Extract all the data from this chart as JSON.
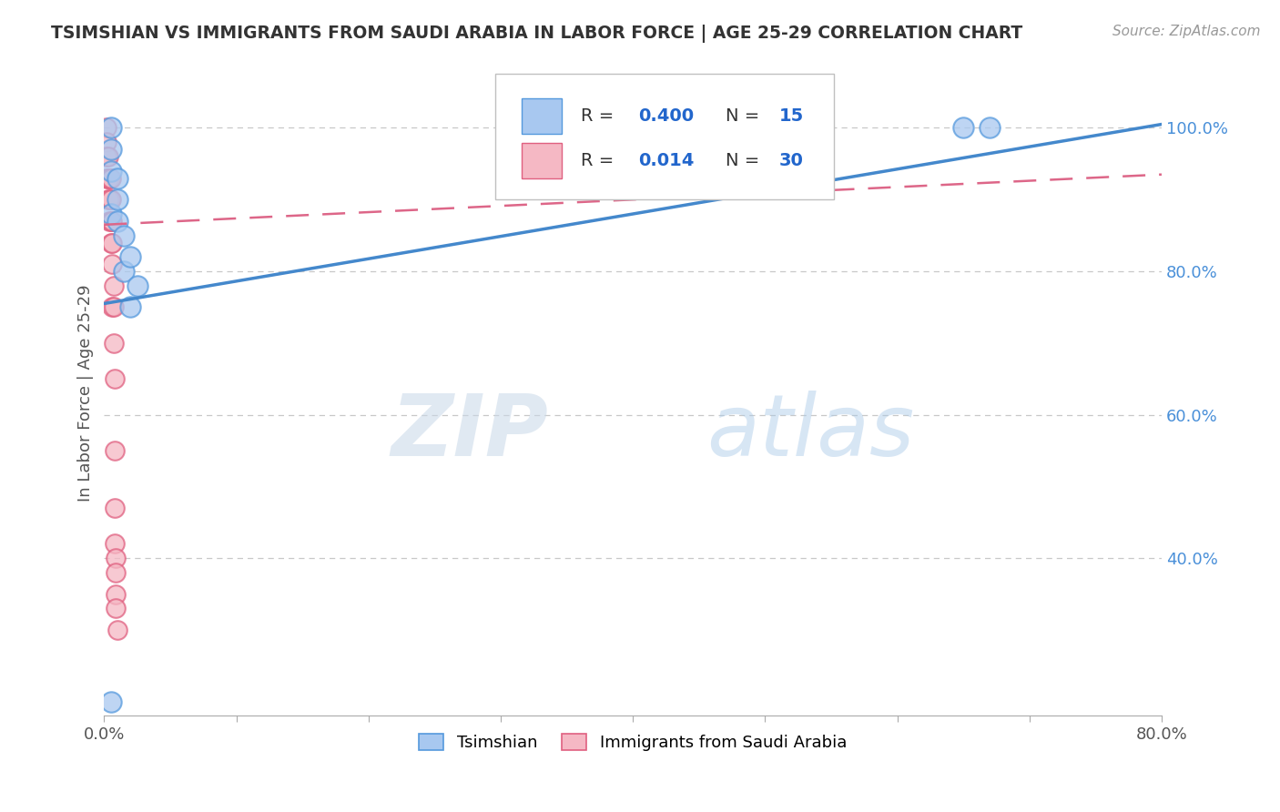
{
  "title": "TSIMSHIAN VS IMMIGRANTS FROM SAUDI ARABIA IN LABOR FORCE | AGE 25-29 CORRELATION CHART",
  "source": "Source: ZipAtlas.com",
  "ylabel": "In Labor Force | Age 25-29",
  "xlim": [
    0.0,
    0.8
  ],
  "ylim": [
    0.18,
    1.08
  ],
  "ytick_labels_right": [
    "40.0%",
    "60.0%",
    "80.0%",
    "100.0%"
  ],
  "ytick_vals_right": [
    0.4,
    0.6,
    0.8,
    1.0
  ],
  "blue_scatter_color": "#A8C8F0",
  "blue_edge_color": "#5599DD",
  "pink_scatter_color": "#F5B8C4",
  "pink_edge_color": "#E06080",
  "blue_line_color": "#4488CC",
  "pink_line_color": "#DD6688",
  "legend_r_blue": "R = 0.400",
  "legend_n_blue": "N = 15",
  "legend_r_pink": "R =  0.014",
  "legend_n_pink": "N = 30",
  "tsimshian_x": [
    0.005,
    0.005,
    0.005,
    0.005,
    0.01,
    0.01,
    0.01,
    0.015,
    0.015,
    0.02,
    0.02,
    0.025,
    0.65,
    0.67,
    0.005
  ],
  "tsimshian_y": [
    1.0,
    0.97,
    0.94,
    0.88,
    0.93,
    0.9,
    0.87,
    0.85,
    0.8,
    0.82,
    0.75,
    0.78,
    1.0,
    1.0,
    0.2
  ],
  "saudi_x": [
    0.002,
    0.002,
    0.002,
    0.002,
    0.003,
    0.003,
    0.003,
    0.004,
    0.004,
    0.004,
    0.005,
    0.005,
    0.005,
    0.005,
    0.006,
    0.006,
    0.006,
    0.006,
    0.007,
    0.007,
    0.007,
    0.008,
    0.008,
    0.008,
    0.008,
    0.009,
    0.009,
    0.009,
    0.009,
    0.01
  ],
  "saudi_y": [
    1.0,
    0.98,
    0.96,
    0.93,
    0.96,
    0.93,
    0.9,
    0.93,
    0.9,
    0.87,
    0.93,
    0.9,
    0.87,
    0.84,
    0.87,
    0.84,
    0.81,
    0.75,
    0.78,
    0.75,
    0.7,
    0.65,
    0.55,
    0.47,
    0.42,
    0.4,
    0.38,
    0.35,
    0.33,
    0.3
  ],
  "watermark_zip": "ZIP",
  "watermark_atlas": "atlas",
  "background_color": "#FFFFFF",
  "grid_color": "#C8C8C8"
}
